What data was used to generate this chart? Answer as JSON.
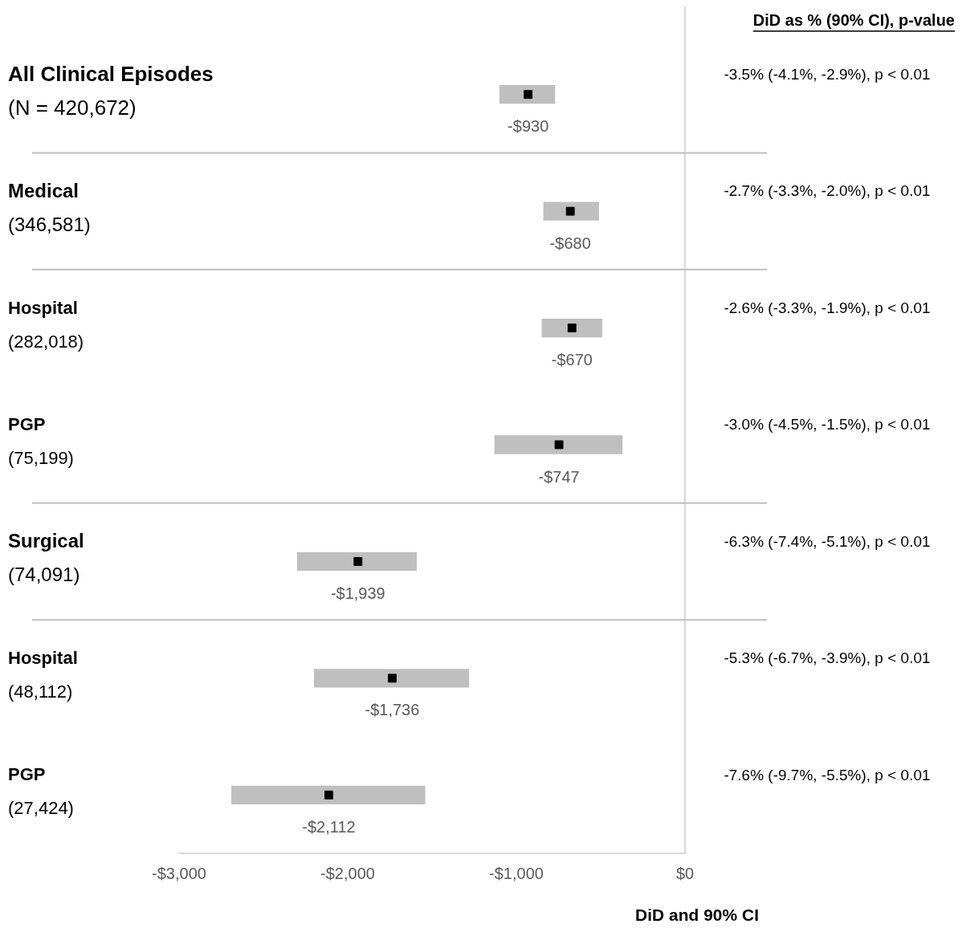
{
  "chart_data": {
    "type": "bar",
    "orientation": "horizontal",
    "xlabel": "DiD and 90% CI",
    "categories": [
      "All Clinical Episodes\n(N = 420,672)",
      "Medical\n(346,581)",
      "Hospital\n(282,018)",
      "PGP\n(75,199)",
      "Surgical\n(74,091)",
      "Hospital\n(48,112)",
      "PGP\n(27,424)"
    ],
    "series": [
      {
        "type": "bar",
        "color": "#bfbfbf",
        "base": [
          -1100,
          -840,
          -850,
          -1130,
          -2300,
          -2200,
          -2690
        ],
        "values": [
          330,
          330,
          360,
          760,
          710,
          920,
          1150
        ]
      },
      {
        "type": "scatter",
        "color": "#000000",
        "marker": "square",
        "values": [
          -930,
          -680,
          -670,
          -747,
          -1939,
          -1736,
          -2112
        ],
        "value_labels": [
          "-$930",
          "-$680",
          "-$670",
          "-$747",
          "-$1,939",
          "-$1,736",
          "-$2,112"
        ]
      }
    ],
    "xlim": [
      -3000,
      0
    ],
    "xticks": [
      {
        "value": -3000,
        "label": "-$3,000"
      },
      {
        "value": -2000,
        "label": "-$2,000"
      },
      {
        "value": -1000,
        "label": "-$1,000"
      },
      {
        "value": 0,
        "label": "$0"
      }
    ],
    "ref_lines": [
      {
        "axis": "x",
        "value": 0,
        "color": "#d9d9d9"
      }
    ],
    "annotations": [
      "DiD as % (90% CI), p-value",
      "-3.5% (-4.1%, -2.9%), p < 0.01",
      "-2.7% (-3.3%, -2.0%), p < 0.01",
      "-2.6% (-3.3%, -1.9%), p < 0.01",
      "-3.0% (-4.5%, -1.5%), p < 0.01",
      "-6.3% (-7.4%, -5.1%), p < 0.01",
      "-5.3% (-6.7%, -3.9%), p < 0.01",
      "-7.6% (-9.7%, -5.5%), p < 0.01"
    ],
    "grid": false,
    "legend": false
  }
}
